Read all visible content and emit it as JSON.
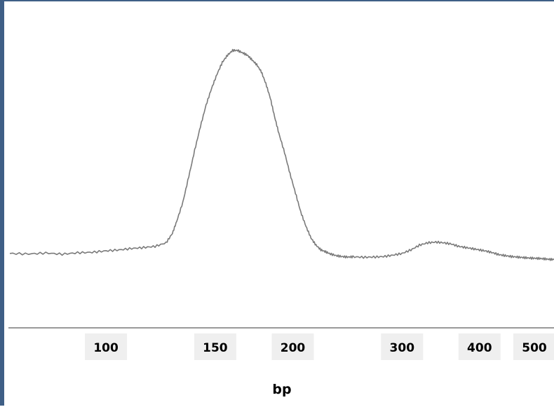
{
  "chart_data": {
    "type": "line",
    "xlabel": "bp",
    "ylabel": "",
    "title": "",
    "x_scale": "log",
    "xlim": [
      70,
      530
    ],
    "ylim": [
      0,
      100
    ],
    "grid": false,
    "colors": {
      "line": "#7a7a7a",
      "axis": "#9a9a9a",
      "frame": "#3f5f86",
      "tick_bg": "#efefef"
    },
    "xticks": [
      {
        "value": 100,
        "label": "100"
      },
      {
        "value": 150,
        "label": "150"
      },
      {
        "value": 200,
        "label": "200"
      },
      {
        "value": 300,
        "label": "300"
      },
      {
        "value": 400,
        "label": "400"
      },
      {
        "value": 500,
        "label": "500"
      }
    ],
    "series": [
      {
        "x": [
          70,
          75,
          80,
          85,
          90,
          95,
          100,
          105,
          110,
          115,
          120,
          125,
          128,
          130,
          133,
          136,
          139,
          142,
          145,
          148,
          151,
          154,
          157,
          160,
          163,
          166,
          169,
          172,
          175,
          178,
          181,
          184,
          187,
          190,
          194,
          198,
          202,
          206,
          210,
          214,
          218,
          222,
          226,
          230,
          235,
          240,
          245,
          250,
          260,
          270,
          280,
          290,
          300,
          310,
          320,
          330,
          340,
          350,
          360,
          370,
          380,
          390,
          400,
          410,
          420,
          430,
          440,
          450,
          460,
          470,
          480,
          490,
          500,
          510,
          520,
          530
        ],
        "values": [
          14.5,
          14.3,
          14.7,
          14.2,
          14.8,
          15.0,
          15.6,
          16.0,
          16.6,
          17.0,
          17.5,
          19.0,
          23.0,
          28.0,
          36.0,
          47.0,
          58.0,
          68.0,
          77.0,
          84.0,
          90.0,
          95.0,
          98.0,
          100.0,
          100.0,
          99.0,
          98.0,
          96.0,
          94.0,
          91.0,
          86.0,
          80.0,
          72.0,
          65.0,
          57.0,
          48.0,
          40.0,
          32.0,
          26.0,
          21.0,
          18.0,
          16.0,
          15.2,
          14.3,
          13.6,
          13.2,
          13.0,
          13.1,
          12.9,
          13.0,
          13.2,
          13.8,
          14.5,
          16.0,
          18.0,
          19.0,
          19.3,
          19.0,
          18.5,
          17.5,
          17.0,
          16.5,
          16.0,
          15.5,
          14.8,
          14.0,
          13.6,
          13.2,
          13.0,
          12.8,
          12.6,
          12.5,
          12.4,
          12.2,
          12.0,
          12.0
        ]
      }
    ]
  }
}
